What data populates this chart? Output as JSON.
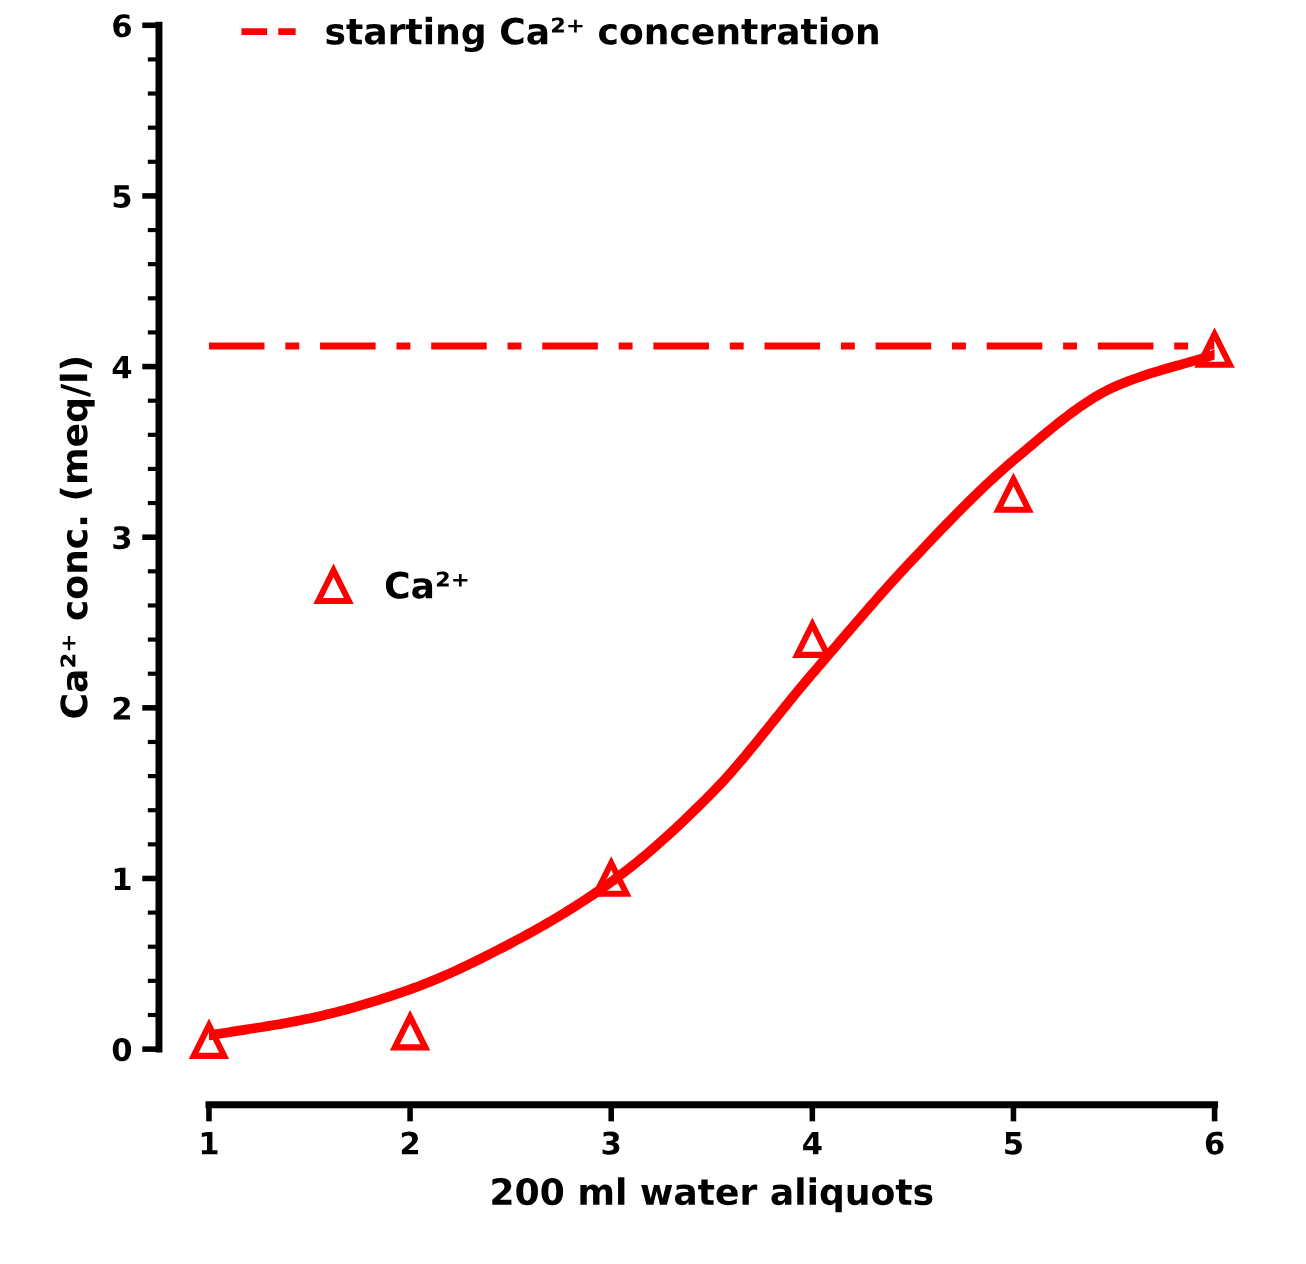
{
  "chart_data": {
    "type": "scatter",
    "xlabel": "200 ml water aliquots",
    "ylabel": "Ca²⁺ conc. (meq/l)",
    "xlim": [
      1,
      6
    ],
    "xticks": [
      1,
      2,
      3,
      4,
      5,
      6
    ],
    "ylim": [
      0,
      6
    ],
    "yticks": [
      0,
      1,
      2,
      3,
      4,
      5,
      6
    ],
    "grid": false,
    "legend": "center left",
    "series": [
      {
        "name": "Ca²⁺",
        "marker": "triangle",
        "color": "#ff0000",
        "x": [
          1,
          2,
          3,
          4,
          5,
          6
        ],
        "values": [
          0.05,
          0.1,
          1.0,
          2.4,
          3.25,
          4.1
        ]
      },
      {
        "type": "line",
        "marker": "none",
        "line_style": "solid",
        "color": "#ff0000",
        "x": [
          1,
          1.5,
          2,
          2.5,
          3,
          3.5,
          4,
          4.5,
          5,
          5.5,
          6
        ],
        "values": [
          0.08,
          0.18,
          0.35,
          0.62,
          0.98,
          1.5,
          2.2,
          2.87,
          3.45,
          3.88,
          4.07
        ]
      }
    ],
    "ref_lines": [
      {
        "axis": "y",
        "value": 4.12,
        "label": "starting Ca²⁺ concentration",
        "color": "#ff0000",
        "line_style": "dashdot"
      }
    ]
  }
}
